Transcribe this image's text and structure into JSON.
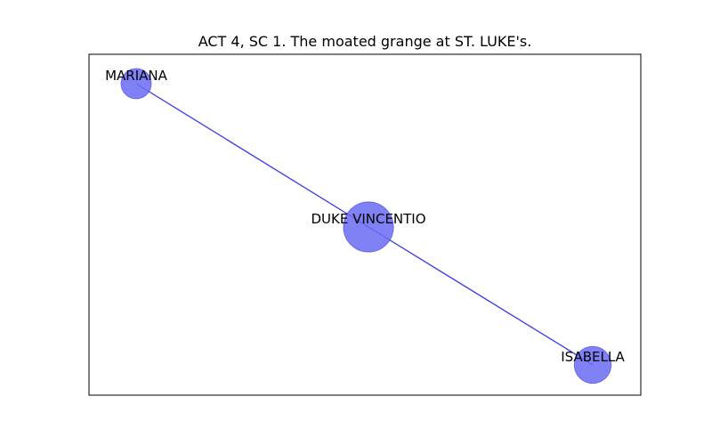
{
  "title": "ACT 4, SC 1. The moated grange at ST. LUKE's.",
  "colors": {
    "node_fill": "#6b6bf5",
    "edge": "#3a3af0",
    "frame": "#000000"
  },
  "nodes": [
    {
      "id": "mariana",
      "label": "MARIANA",
      "weight": 1
    },
    {
      "id": "duke",
      "label": "DUKE VINCENTIO",
      "weight": 5
    },
    {
      "id": "isabella",
      "label": "ISABELLA",
      "weight": 2
    }
  ],
  "edges": [
    {
      "from": "mariana",
      "to": "duke"
    },
    {
      "from": "duke",
      "to": "isabella"
    }
  ]
}
